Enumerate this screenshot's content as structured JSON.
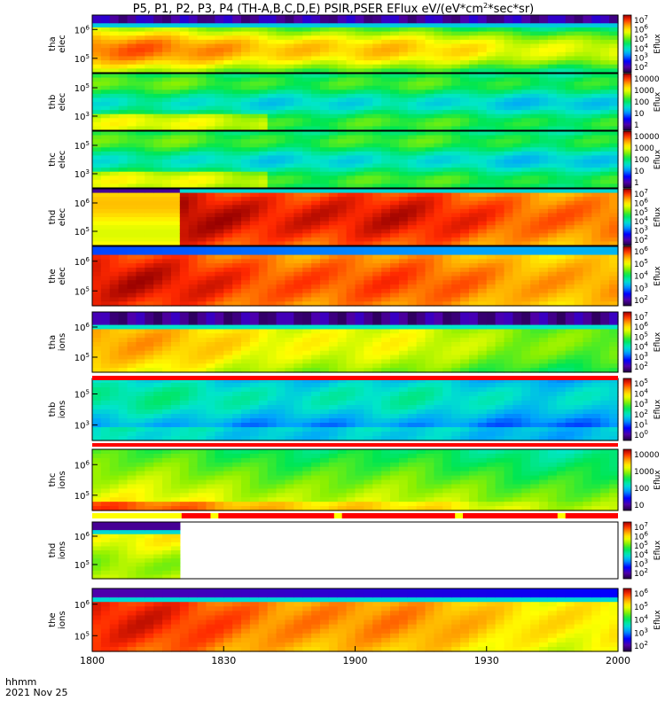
{
  "chart_data": {
    "type": "heatmap",
    "title": "P5, P1, P2, P3, P4 (TH-A,B,C,D,E) PSIR,PSER EFlux eV/(eV*cm",
    "title_sup": "2",
    "title_tail": "*sec*sr)",
    "colorbar_label": "Eflux",
    "x_tick_labels": [
      "1800",
      "1830",
      "1900",
      "1930",
      "2000"
    ],
    "x_tick_minutes": [
      0,
      30,
      60,
      90,
      120
    ],
    "x_range_minutes": [
      0,
      120
    ],
    "footer_units": "hhmm",
    "footer_date": "2021 Nov 25",
    "panels": [
      {
        "label1": "tha",
        "label2": "elec",
        "yticks": [
          "10^6",
          "10^5"
        ],
        "cbar": [
          "10^7",
          "10^6",
          "10^5",
          "10^4",
          "10^3",
          "10^2"
        ],
        "scheme": "elecA"
      },
      {
        "label1": "thb",
        "label2": "elec",
        "yticks": [
          "10^5",
          "10^3"
        ],
        "cbar": [
          "10000",
          "1000",
          "100",
          "10",
          "1"
        ],
        "scheme": "green"
      },
      {
        "label1": "thc",
        "label2": "elec",
        "yticks": [
          "10^5",
          "10^3"
        ],
        "cbar": [
          "10000",
          "1000",
          "100",
          "10",
          "1"
        ],
        "scheme": "green"
      },
      {
        "label1": "thd",
        "label2": "elec",
        "yticks": [
          "10^6",
          "10^5"
        ],
        "cbar": [
          "10^7",
          "10^6",
          "10^5",
          "10^4",
          "10^3",
          "10^2"
        ],
        "scheme": "elecD"
      },
      {
        "label1": "the",
        "label2": "elec",
        "yticks": [
          "10^6",
          "10^5"
        ],
        "cbar": [
          "10^6",
          "10^5",
          "10^4",
          "10^3",
          "10^2"
        ],
        "scheme": "elecE"
      },
      {
        "label1": "tha",
        "label2": "ions",
        "yticks": [
          "10^6",
          "10^5"
        ],
        "cbar": [
          "10^7",
          "10^6",
          "10^5",
          "10^4",
          "10^3",
          "10^2"
        ],
        "scheme": "ionsA"
      },
      {
        "label1": "thb",
        "label2": "ions",
        "yticks": [
          "10^5",
          "10^3"
        ],
        "cbar": [
          "10^5",
          "10^4",
          "10^3",
          "10^2",
          "10^1",
          "10^0"
        ],
        "scheme": "ionsB"
      },
      {
        "label1": "thc",
        "label2": "ions",
        "yticks": [
          "10^6",
          "10^5"
        ],
        "cbar": [
          "10000",
          "1000",
          "100",
          "10"
        ],
        "scheme": "ionsC"
      },
      {
        "label1": "thd",
        "label2": "ions",
        "yticks": [
          "10^6",
          "10^5"
        ],
        "cbar": [
          "10^7",
          "10^6",
          "10^5",
          "10^4",
          "10^3",
          "10^2"
        ],
        "scheme": "ionsD"
      },
      {
        "label1": "the",
        "label2": "ions",
        "yticks": [
          "10^6",
          "10^5"
        ],
        "cbar": [
          "10^6",
          "10^5",
          "10^4",
          "10^3",
          "10^2"
        ],
        "scheme": "ionsE"
      }
    ]
  }
}
